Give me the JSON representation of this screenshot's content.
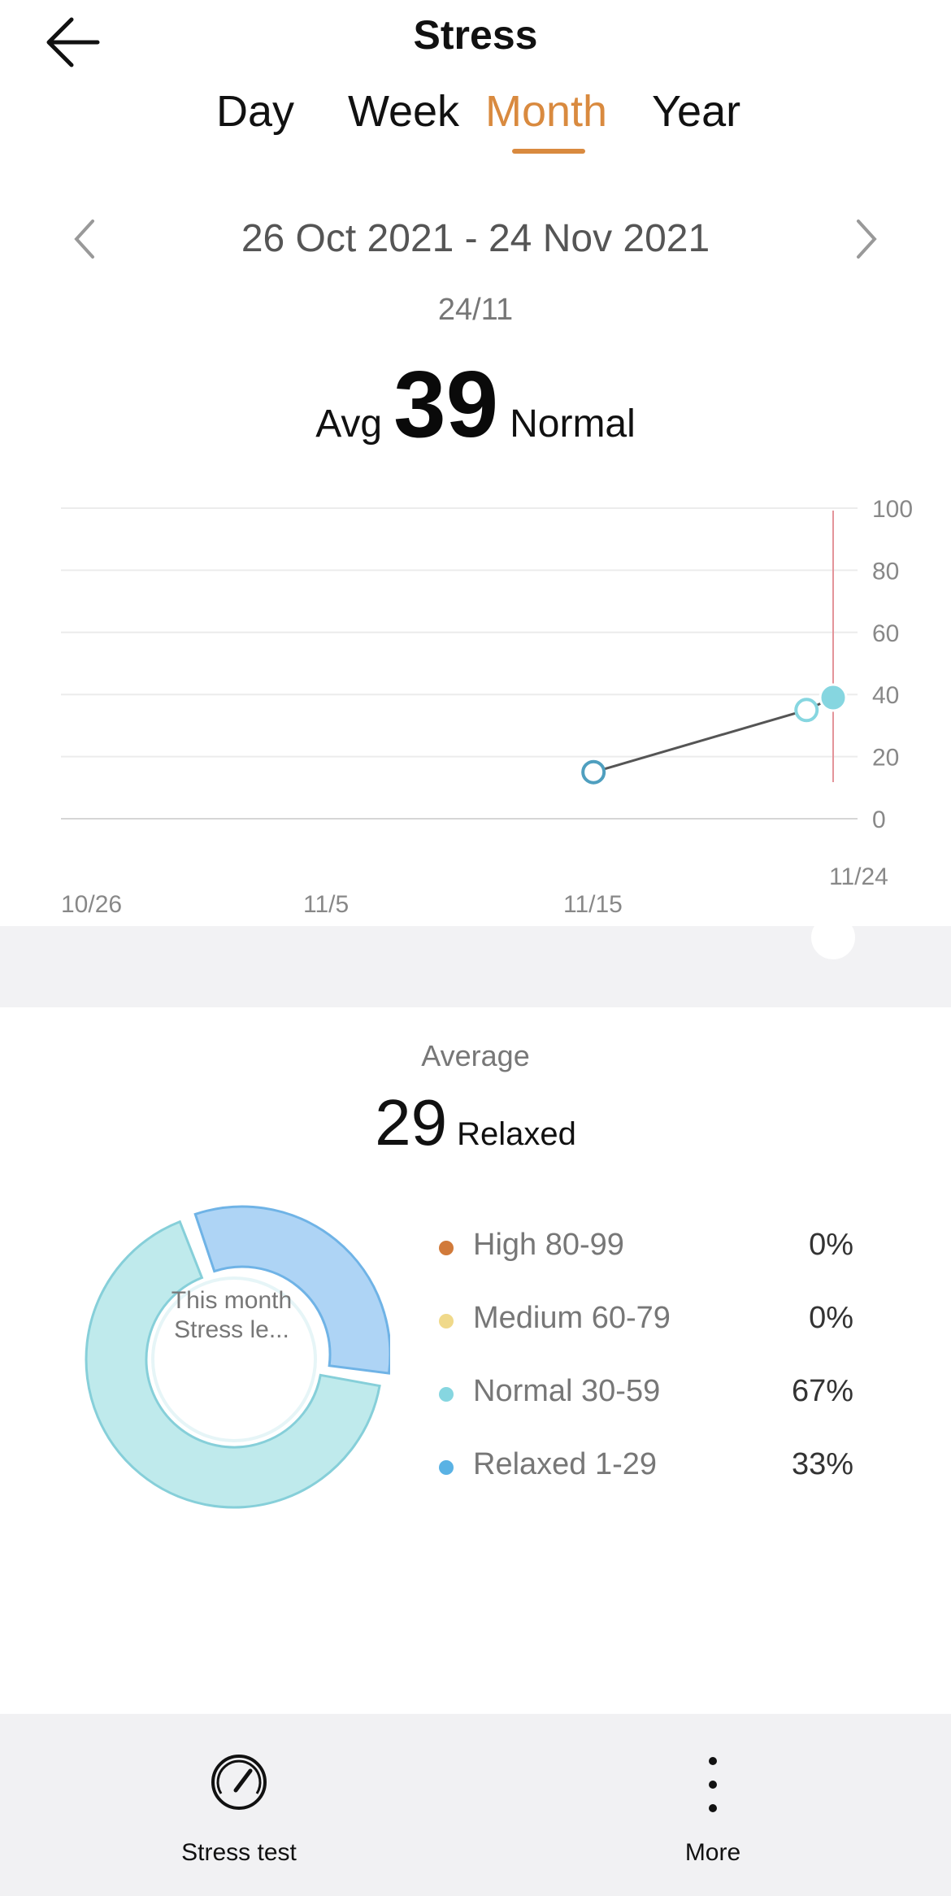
{
  "header": {
    "title": "Stress",
    "back_icon": "arrow-left-icon"
  },
  "tabs": [
    {
      "label": "Day",
      "active": false
    },
    {
      "label": "Week",
      "active": false
    },
    {
      "label": "Month",
      "active": true
    },
    {
      "label": "Year",
      "active": false
    }
  ],
  "colors": {
    "accent": "#d98a3f",
    "normal": "#86d6e0",
    "relaxed": "#9fcdf2",
    "high": "#d17a3a",
    "medium": "#f0d98a"
  },
  "range": {
    "text": "26 Oct 2021 - 24 Nov 2021",
    "prev_icon": "chevron-left-icon",
    "next_icon": "chevron-right-icon"
  },
  "selected": {
    "date": "24/11",
    "avg_label": "Avg",
    "avg_value": "39",
    "status": "Normal"
  },
  "chart_data": {
    "type": "line",
    "x_tick_labels": [
      "10/26",
      "11/5",
      "11/15",
      "11/24"
    ],
    "y_ticks": [
      "0",
      "20",
      "40",
      "60",
      "80",
      "100"
    ],
    "ylim": [
      0,
      100
    ],
    "points": [
      {
        "x": "11/15",
        "y": 15
      },
      {
        "x": "11/23",
        "y": 35
      },
      {
        "x": "11/24",
        "y": 39,
        "selected": true
      }
    ]
  },
  "summary": {
    "label": "Average",
    "value": "29",
    "status": "Relaxed",
    "donut_center": "This month Stress le...",
    "legend": [
      {
        "label": "High 80-99",
        "percent": "0%",
        "color": "#d17a3a"
      },
      {
        "label": "Medium 60-79",
        "percent": "0%",
        "color": "#f0d98a"
      },
      {
        "label": "Normal 30-59",
        "percent": "67%",
        "color": "#86d6e0"
      },
      {
        "label": "Relaxed 1-29",
        "percent": "33%",
        "color": "#5ab2e4"
      }
    ],
    "donut_values": {
      "normal": 67,
      "relaxed": 33
    }
  },
  "bottom": {
    "stress_test": {
      "label": "Stress test",
      "icon": "gauge-icon"
    },
    "more": {
      "label": "More",
      "icon": "more-vertical-icon"
    }
  }
}
